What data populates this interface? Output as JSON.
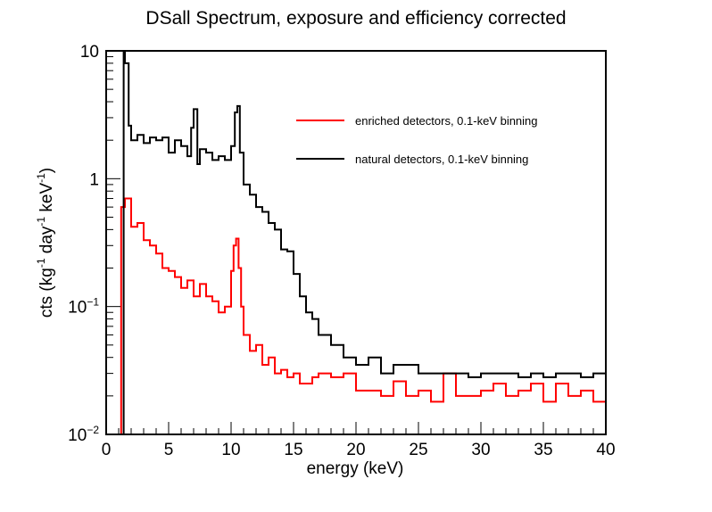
{
  "chart_data": {
    "type": "line",
    "title": "DSall Spectrum, exposure and efficiency corrected",
    "xlabel": "energy (keV)",
    "ylabel": {
      "base": "cts (kg",
      "exp1": "-1",
      "mid1": " day",
      "exp2": "-1",
      "mid2": " keV",
      "exp3": "-1",
      "end": ")"
    },
    "xlim": [
      0,
      40
    ],
    "ylim": [
      0.01,
      10
    ],
    "y_scale": "log",
    "grid": false,
    "legend_placement": "top-right",
    "x_ticks": [
      "0",
      "5",
      "10",
      "15",
      "20",
      "25",
      "30",
      "35",
      "40"
    ],
    "y_ticks": [
      {
        "value": 10,
        "base": "10",
        "exp": ""
      },
      {
        "value": 1,
        "base": "1",
        "exp": ""
      },
      {
        "value": 0.1,
        "base": "10",
        "exp": "−1"
      },
      {
        "value": 0.01,
        "base": "10",
        "exp": "−2"
      }
    ],
    "series": [
      {
        "name": "enriched detectors, 0.1-keV binning",
        "color": "#ff0000",
        "binning_keV": 0.1,
        "x": [
          1.0,
          1.2,
          1.5,
          2.0,
          2.5,
          3.0,
          3.5,
          4.0,
          4.5,
          5.0,
          5.5,
          6.0,
          6.5,
          7.0,
          7.5,
          8.0,
          8.5,
          9.0,
          9.5,
          10.0,
          10.2,
          10.4,
          10.6,
          10.8,
          11.0,
          11.5,
          12.0,
          12.5,
          13.0,
          13.5,
          14.0,
          14.5,
          15.0,
          15.5,
          16.0,
          16.5,
          17.0,
          18.0,
          19.0,
          20.0,
          21.0,
          22.0,
          23.0,
          24.0,
          25.0,
          26.0,
          27.0,
          28.0,
          29.0,
          30.0,
          31.0,
          32.0,
          33.0,
          34.0,
          35.0,
          36.0,
          37.0,
          38.0,
          39.0,
          40.0
        ],
        "y": [
          0.01,
          0.6,
          0.7,
          0.42,
          0.45,
          0.33,
          0.3,
          0.26,
          0.2,
          0.19,
          0.17,
          0.14,
          0.16,
          0.12,
          0.15,
          0.12,
          0.11,
          0.09,
          0.1,
          0.19,
          0.3,
          0.34,
          0.2,
          0.1,
          0.06,
          0.045,
          0.05,
          0.035,
          0.04,
          0.03,
          0.032,
          0.028,
          0.03,
          0.025,
          0.025,
          0.028,
          0.03,
          0.028,
          0.03,
          0.022,
          0.022,
          0.02,
          0.026,
          0.02,
          0.022,
          0.018,
          0.03,
          0.02,
          0.02,
          0.022,
          0.025,
          0.02,
          0.022,
          0.025,
          0.018,
          0.025,
          0.02,
          0.022,
          0.018,
          0.025
        ]
      },
      {
        "name": "natural detectors, 0.1-keV binning",
        "color": "#000000",
        "binning_keV": 0.1,
        "x": [
          1.0,
          1.2,
          1.4,
          1.5,
          1.8,
          2.0,
          2.5,
          3.0,
          3.5,
          4.0,
          4.5,
          5.0,
          5.5,
          6.0,
          6.5,
          6.8,
          7.0,
          7.3,
          7.5,
          8.0,
          8.5,
          9.0,
          9.5,
          10.0,
          10.3,
          10.5,
          10.7,
          11.0,
          11.5,
          12.0,
          12.5,
          13.0,
          13.5,
          14.0,
          14.5,
          15.0,
          15.5,
          16.0,
          16.5,
          17.0,
          18.0,
          19.0,
          20.0,
          21.0,
          22.0,
          23.0,
          24.0,
          25.0,
          26.0,
          27.0,
          28.0,
          29.0,
          30.0,
          31.0,
          32.0,
          33.0,
          34.0,
          35.0,
          36.0,
          37.0,
          38.0,
          39.0,
          40.0
        ],
        "y": [
          0.01,
          0.01,
          10,
          8,
          2.6,
          2.0,
          2.2,
          1.9,
          2.1,
          2.0,
          2.1,
          1.6,
          2.0,
          1.8,
          1.5,
          2.5,
          3.5,
          1.3,
          1.7,
          1.6,
          1.4,
          1.5,
          1.4,
          1.8,
          3.3,
          3.7,
          1.6,
          0.9,
          0.75,
          0.6,
          0.55,
          0.45,
          0.4,
          0.28,
          0.27,
          0.18,
          0.12,
          0.09,
          0.08,
          0.06,
          0.05,
          0.04,
          0.035,
          0.04,
          0.03,
          0.035,
          0.035,
          0.03,
          0.03,
          0.03,
          0.03,
          0.028,
          0.03,
          0.03,
          0.03,
          0.028,
          0.03,
          0.028,
          0.03,
          0.03,
          0.028,
          0.03,
          0.03
        ]
      }
    ]
  }
}
